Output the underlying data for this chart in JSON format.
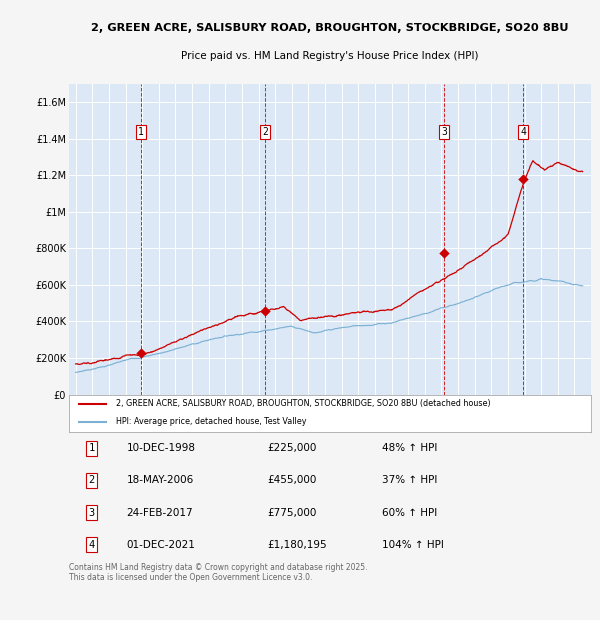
{
  "title1": "2, GREEN ACRE, SALISBURY ROAD, BROUGHTON, STOCKBRIDGE, SO20 8BU",
  "title2": "Price paid vs. HM Land Registry's House Price Index (HPI)",
  "plot_bg_color": "#dce8f5",
  "ylim": [
    0,
    1700000
  ],
  "yticks": [
    0,
    200000,
    400000,
    600000,
    800000,
    1000000,
    1200000,
    1400000,
    1600000
  ],
  "ytick_labels": [
    "£0",
    "£200K",
    "£400K",
    "£600K",
    "£800K",
    "£1M",
    "£1.2M",
    "£1.4M",
    "£1.6M"
  ],
  "sale_prices": [
    225000,
    455000,
    775000,
    1180195
  ],
  "sale_labels": [
    "1",
    "2",
    "3",
    "4"
  ],
  "sale_year_nums": [
    1998.94,
    2006.38,
    2017.15,
    2021.92
  ],
  "legend_line1": "2, GREEN ACRE, SALISBURY ROAD, BROUGHTON, STOCKBRIDGE, SO20 8BU (detached house)",
  "legend_line2": "HPI: Average price, detached house, Test Valley",
  "table_data": [
    [
      "1",
      "10-DEC-1998",
      "£225,000",
      "48% ↑ HPI"
    ],
    [
      "2",
      "18-MAY-2006",
      "£455,000",
      "37% ↑ HPI"
    ],
    [
      "3",
      "24-FEB-2017",
      "£775,000",
      "60% ↑ HPI"
    ],
    [
      "4",
      "01-DEC-2021",
      "£1,180,195",
      "104% ↑ HPI"
    ]
  ],
  "footnote": "Contains HM Land Registry data © Crown copyright and database right 2025.\nThis data is licensed under the Open Government Licence v3.0.",
  "red_line_color": "#cc0000",
  "blue_line_color": "#7ab0d4",
  "grid_color": "#ffffff",
  "vline_color": "#cc0000",
  "fig_bg": "#f5f5f5"
}
